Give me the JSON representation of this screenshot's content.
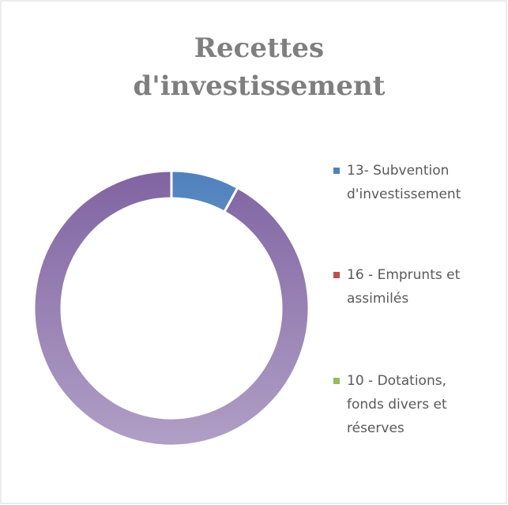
{
  "chart_data": {
    "type": "donut",
    "title": "Recettes d'investissement",
    "categories": [
      "13- Subvention d'investissement",
      "16 - Emprunts et assimilés",
      "10 - Dotations, fonds divers et réserves",
      null
    ],
    "values": [
      8,
      0,
      0,
      92
    ],
    "colors": [
      "#4f81bd",
      "#c0504d",
      "#9bbb59",
      "#8064a2"
    ],
    "legend": "right"
  }
}
